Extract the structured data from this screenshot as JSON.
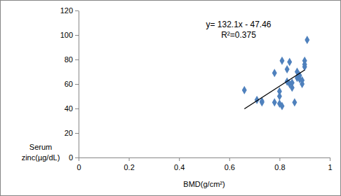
{
  "chart_data": {
    "type": "scatter",
    "x_label": "BMD(g/cm²)",
    "y_label": [
      "Serum",
      "zinc(µg/dL)"
    ],
    "annotations": [
      "y= 132.1x - 47.46",
      "R²=0.375"
    ],
    "xlim": [
      0,
      1
    ],
    "xticks": [
      0,
      0.2,
      0.4,
      0.6,
      0.8,
      1
    ],
    "ylim": [
      0,
      120
    ],
    "yticks": [
      0,
      20,
      40,
      60,
      80,
      100,
      120
    ],
    "grid": false,
    "series": [
      {
        "type": "scatter",
        "marker": "diamond",
        "color": "#4f81bd",
        "x": [
          0.66,
          0.71,
          0.73,
          0.73,
          0.78,
          0.78,
          0.8,
          0.8,
          0.8,
          0.81,
          0.81,
          0.83,
          0.83,
          0.84,
          0.84,
          0.85,
          0.85,
          0.86,
          0.87,
          0.87,
          0.88,
          0.88,
          0.89,
          0.89,
          0.9,
          0.9,
          0.9,
          0.91
        ],
        "values": [
          55,
          47,
          46,
          45,
          45,
          69,
          44,
          50,
          54,
          79,
          42,
          72,
          62,
          78,
          60,
          57,
          61,
          45,
          65,
          70,
          67,
          64,
          60,
          63,
          76,
          79,
          74,
          96
        ]
      },
      {
        "type": "line",
        "line_style": "solid",
        "color": "#000000",
        "x": [
          0.66,
          0.9
        ],
        "values": [
          39.7,
          71.4
        ]
      }
    ]
  }
}
